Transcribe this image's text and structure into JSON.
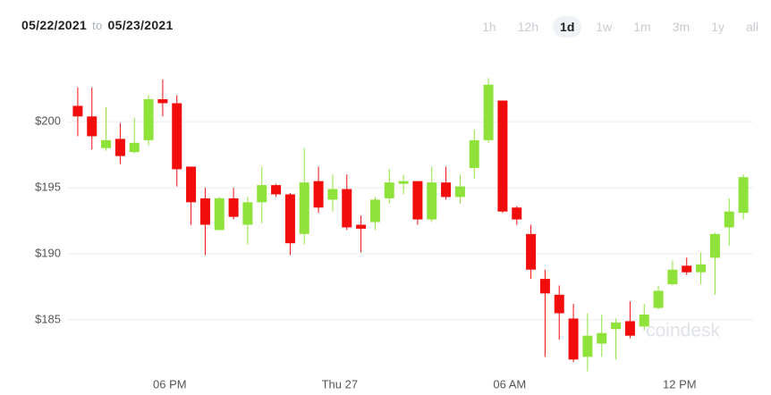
{
  "header": {
    "from": "05/22/2021",
    "joiner": "to",
    "to": "05/23/2021"
  },
  "range_buttons": [
    "1h",
    "12h",
    "1d",
    "1w",
    "1m",
    "3m",
    "1y",
    "all"
  ],
  "selected_range": "1d",
  "chart_data": {
    "type": "candlestick",
    "watermark": "coindesk",
    "categories": [
      null,
      null,
      null,
      null,
      null,
      null,
      null,
      "06 PM",
      null,
      null,
      null,
      null,
      null,
      null,
      null,
      null,
      null,
      null,
      null,
      "Thu 27",
      null,
      null,
      null,
      null,
      null,
      null,
      null,
      null,
      null,
      null,
      null,
      "06 AM",
      null,
      null,
      null,
      null,
      null,
      null,
      null,
      null,
      null,
      null,
      null,
      "12 PM",
      null,
      null,
      null,
      null
    ],
    "open": [
      201.2,
      200.4,
      198.0,
      198.7,
      197.7,
      198.6,
      201.7,
      201.4,
      196.6,
      194.2,
      191.8,
      194.2,
      192.2,
      193.9,
      195.2,
      194.5,
      191.5,
      195.5,
      194.1,
      194.9,
      192.2,
      192.4,
      194.2,
      195.3,
      195.5,
      192.6,
      195.4,
      194.3,
      196.5,
      198.6,
      201.6,
      193.5,
      191.5,
      188.1,
      186.9,
      185.1,
      182.2,
      183.2,
      184.3,
      184.9,
      184.5,
      185.9,
      187.7,
      189.1,
      188.6,
      189.7,
      192.0,
      193.1
    ],
    "high": [
      202.6,
      202.6,
      201.1,
      199.9,
      200.3,
      202.0,
      203.2,
      202.0,
      196.6,
      195.0,
      194.3,
      195.0,
      194.3,
      196.6,
      195.3,
      194.6,
      198.0,
      196.6,
      196.0,
      196.0,
      192.9,
      194.3,
      196.4,
      196.0,
      195.5,
      196.6,
      196.6,
      196.0,
      199.4,
      203.3,
      201.6,
      193.6,
      192.2,
      188.8,
      187.6,
      186.2,
      185.5,
      185.4,
      185.1,
      186.4,
      186.2,
      187.6,
      189.5,
      189.7,
      190.1,
      191.6,
      194.2,
      196.0
    ],
    "low": [
      198.9,
      197.9,
      197.8,
      196.8,
      197.6,
      198.2,
      200.4,
      195.1,
      192.2,
      189.9,
      191.8,
      192.6,
      190.7,
      192.3,
      194.3,
      189.9,
      190.7,
      193.1,
      193.2,
      191.8,
      190.1,
      191.8,
      193.8,
      194.5,
      192.2,
      192.4,
      194.1,
      193.8,
      195.7,
      198.4,
      193.1,
      192.2,
      188.1,
      182.2,
      183.5,
      181.8,
      181.1,
      182.2,
      182.0,
      183.6,
      184.2,
      185.8,
      187.6,
      188.4,
      187.7,
      186.9,
      190.6,
      192.6
    ],
    "close": [
      200.4,
      198.9,
      198.6,
      197.4,
      198.4,
      201.7,
      201.4,
      196.4,
      193.9,
      192.2,
      194.2,
      192.8,
      193.9,
      195.2,
      194.5,
      190.8,
      195.4,
      193.5,
      194.9,
      192.0,
      191.9,
      194.1,
      195.4,
      195.5,
      192.6,
      195.4,
      194.3,
      195.1,
      198.6,
      202.8,
      193.2,
      192.6,
      188.8,
      187.0,
      185.5,
      182.0,
      183.8,
      184.0,
      184.8,
      183.8,
      185.4,
      187.2,
      188.8,
      188.6,
      189.2,
      191.5,
      193.2,
      195.8
    ],
    "up_color": "#8ee23a",
    "down_color": "#f20c0c",
    "ylim": [
      180.8,
      203.8
    ],
    "yticks": [
      {
        "value": 185,
        "label": "$185"
      },
      {
        "value": 190,
        "label": "$190"
      },
      {
        "value": 195,
        "label": "$195"
      },
      {
        "value": 200,
        "label": "$200"
      }
    ],
    "grid": true
  }
}
